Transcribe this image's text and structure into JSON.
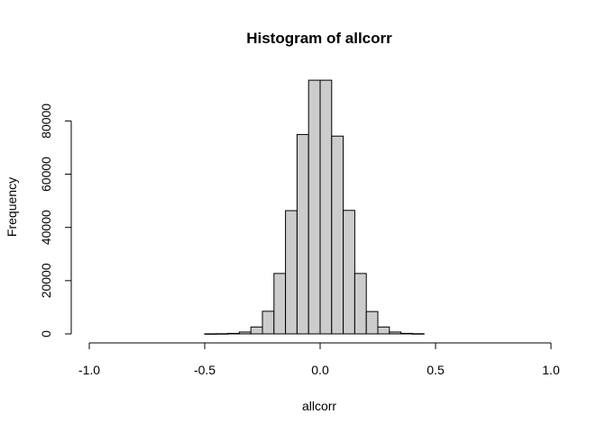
{
  "chart_data": {
    "type": "bar",
    "title": "Histogram of allcorr",
    "xlabel": "allcorr",
    "ylabel": "Frequency",
    "xlim": [
      -1.0,
      1.0
    ],
    "ylim": [
      0,
      95000
    ],
    "x_ticks": [
      -1.0,
      -0.5,
      0.0,
      0.5,
      1.0
    ],
    "x_tick_labels": [
      "-1.0",
      "-0.5",
      "0.0",
      "0.5",
      "1.0"
    ],
    "y_ticks": [
      0,
      20000,
      40000,
      60000,
      80000
    ],
    "y_tick_labels": [
      "0",
      "20000",
      "40000",
      "60000",
      "80000"
    ],
    "grid": false,
    "legend": "none",
    "bin_width": 0.05,
    "bins": [
      {
        "start": -0.5,
        "end": -0.45,
        "count": 40
      },
      {
        "start": -0.45,
        "end": -0.4,
        "count": 80
      },
      {
        "start": -0.4,
        "end": -0.35,
        "count": 200
      },
      {
        "start": -0.35,
        "end": -0.3,
        "count": 700
      },
      {
        "start": -0.3,
        "end": -0.25,
        "count": 2600
      },
      {
        "start": -0.25,
        "end": -0.2,
        "count": 8500
      },
      {
        "start": -0.2,
        "end": -0.15,
        "count": 22700
      },
      {
        "start": -0.15,
        "end": -0.1,
        "count": 46300
      },
      {
        "start": -0.1,
        "end": -0.05,
        "count": 74900
      },
      {
        "start": -0.05,
        "end": 0.0,
        "count": 95300
      },
      {
        "start": 0.0,
        "end": 0.05,
        "count": 95300
      },
      {
        "start": 0.05,
        "end": 0.1,
        "count": 74300
      },
      {
        "start": 0.1,
        "end": 0.15,
        "count": 46400
      },
      {
        "start": 0.15,
        "end": 0.2,
        "count": 22700
      },
      {
        "start": 0.2,
        "end": 0.25,
        "count": 8400
      },
      {
        "start": 0.25,
        "end": 0.3,
        "count": 2600
      },
      {
        "start": 0.3,
        "end": 0.35,
        "count": 700
      },
      {
        "start": 0.35,
        "end": 0.4,
        "count": 200
      },
      {
        "start": 0.4,
        "end": 0.45,
        "count": 80
      }
    ],
    "colors": {
      "bar_fill": "#cccccc",
      "bar_stroke": "#000000"
    }
  }
}
